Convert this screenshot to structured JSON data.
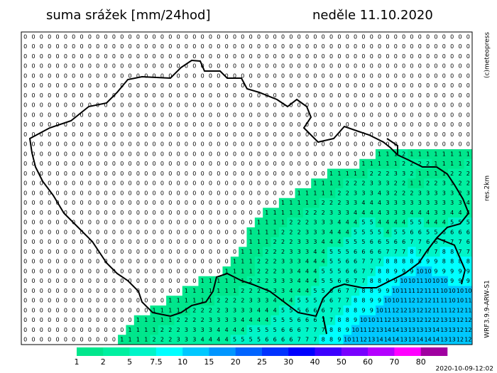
{
  "title": "suma srážek [mm/24hod]",
  "date": "neděle 11.10.2020",
  "copyright": "(c)meteopress",
  "resolution": "res.2km",
  "model": "WRF3.9.9-ARW-S1",
  "timestamp": "2020-10-09-12:02",
  "colorbar": {
    "labels": [
      "1",
      "2",
      "5",
      "7.5",
      "10",
      "15",
      "20",
      "25",
      "30",
      "40",
      "50",
      "60",
      "70",
      "80"
    ],
    "thresholds": [
      1,
      2,
      5,
      7.5,
      10,
      15,
      20,
      25,
      30,
      40,
      50,
      60,
      70,
      80
    ],
    "colors": [
      "#00e68c",
      "#00f0a0",
      "#00f5c8",
      "#00ffff",
      "#00c8ff",
      "#0096ff",
      "#0064ff",
      "#0032ff",
      "#0000ff",
      "#3c00ff",
      "#7800ff",
      "#b400ff",
      "#ff00ff",
      "#a000a0"
    ]
  },
  "grid_values": [
    [
      0,
      0,
      0,
      0,
      0,
      0,
      0,
      0,
      0,
      0,
      0,
      0,
      0,
      0,
      0,
      0,
      0,
      0,
      0,
      0,
      0,
      0,
      0,
      0,
      0,
      0,
      0,
      0,
      0,
      0,
      0,
      0,
      0,
      0,
      0,
      0,
      0,
      0,
      0,
      0,
      0,
      0,
      0,
      0,
      0,
      0,
      0,
      0,
      0,
      0,
      0,
      0,
      0,
      0,
      0,
      0
    ],
    [
      0,
      0,
      0,
      0,
      0,
      0,
      0,
      0,
      0,
      0,
      0,
      0,
      0,
      0,
      0,
      0,
      0,
      0,
      0,
      0,
      0,
      0,
      0,
      0,
      0,
      0,
      0,
      0,
      0,
      0,
      0,
      0,
      0,
      0,
      0,
      0,
      0,
      0,
      0,
      0,
      0,
      0,
      0,
      0,
      0,
      0,
      0,
      0,
      0,
      0,
      0,
      0,
      0,
      0,
      0,
      0
    ],
    [
      0,
      0,
      0,
      0,
      0,
      0,
      0,
      0,
      0,
      0,
      0,
      0,
      0,
      0,
      0,
      0,
      0,
      0,
      0,
      0,
      0,
      0,
      0,
      0,
      0,
      0,
      0,
      0,
      0,
      0,
      0,
      0,
      0,
      0,
      0,
      0,
      0,
      0,
      0,
      0,
      0,
      0,
      0,
      0,
      0,
      0,
      0,
      0,
      0,
      0,
      0,
      0,
      0,
      0,
      0,
      0
    ],
    [
      0,
      0,
      0,
      0,
      0,
      0,
      0,
      0,
      0,
      0,
      0,
      0,
      0,
      0,
      0,
      0,
      0,
      0,
      0,
      0,
      0,
      0,
      0,
      0,
      0,
      0,
      0,
      0,
      0,
      0,
      0,
      0,
      0,
      0,
      0,
      0,
      0,
      0,
      0,
      0,
      0,
      0,
      0,
      0,
      0,
      0,
      0,
      0,
      0,
      0,
      0,
      0,
      0,
      0,
      0,
      0
    ],
    [
      0,
      0,
      0,
      0,
      0,
      0,
      0,
      0,
      0,
      0,
      0,
      0,
      0,
      0,
      0,
      0,
      0,
      0,
      0,
      0,
      0,
      0,
      0,
      0,
      0,
      0,
      0,
      0,
      0,
      0,
      0,
      0,
      0,
      0,
      0,
      0,
      0,
      0,
      0,
      0,
      0,
      0,
      0,
      0,
      0,
      0,
      0,
      0,
      0,
      0,
      0,
      0,
      0,
      0,
      0,
      0
    ],
    [
      0,
      0,
      0,
      0,
      0,
      0,
      0,
      0,
      0,
      0,
      0,
      0,
      0,
      0,
      0,
      0,
      0,
      0,
      0,
      0,
      0,
      0,
      0,
      0,
      0,
      0,
      0,
      0,
      0,
      0,
      0,
      0,
      0,
      0,
      0,
      0,
      0,
      0,
      0,
      0,
      0,
      0,
      0,
      0,
      0,
      0,
      0,
      0,
      0,
      0,
      0,
      0,
      0,
      0,
      0,
      0
    ],
    [
      0,
      0,
      0,
      0,
      0,
      0,
      0,
      0,
      0,
      0,
      0,
      0,
      0,
      0,
      0,
      0,
      0,
      0,
      0,
      0,
      0,
      0,
      0,
      0,
      0,
      0,
      0,
      0,
      0,
      0,
      0,
      0,
      0,
      0,
      0,
      0,
      0,
      0,
      0,
      0,
      0,
      0,
      0,
      0,
      0,
      0,
      0,
      0,
      0,
      0,
      0,
      0,
      0,
      0,
      0,
      0
    ],
    [
      0,
      0,
      0,
      0,
      0,
      0,
      0,
      0,
      0,
      0,
      0,
      0,
      0,
      0,
      0,
      0,
      0,
      0,
      0,
      0,
      0,
      0,
      0,
      0,
      0,
      0,
      0,
      0,
      0,
      0,
      0,
      0,
      0,
      0,
      0,
      0,
      0,
      0,
      0,
      0,
      0,
      0,
      0,
      0,
      0,
      0,
      0,
      0,
      0,
      0,
      0,
      0,
      0,
      0,
      0,
      0
    ],
    [
      0,
      0,
      0,
      0,
      0,
      0,
      0,
      0,
      0,
      0,
      0,
      0,
      0,
      0,
      0,
      0,
      0,
      0,
      0,
      0,
      0,
      0,
      0,
      0,
      0,
      0,
      0,
      0,
      0,
      0,
      0,
      0,
      0,
      0,
      0,
      0,
      0,
      0,
      0,
      0,
      0,
      0,
      0,
      0,
      0,
      0,
      0,
      0,
      0,
      0,
      0,
      0,
      0,
      0,
      0,
      0
    ],
    [
      0,
      0,
      0,
      0,
      0,
      0,
      0,
      0,
      0,
      0,
      0,
      0,
      0,
      0,
      0,
      0,
      0,
      0,
      0,
      0,
      0,
      0,
      0,
      0,
      0,
      0,
      0,
      0,
      0,
      0,
      0,
      0,
      0,
      0,
      0,
      0,
      0,
      0,
      0,
      0,
      0,
      0,
      0,
      0,
      0,
      0,
      0,
      0,
      0,
      0,
      0,
      0,
      0,
      0,
      0,
      0
    ],
    [
      0,
      0,
      0,
      0,
      0,
      0,
      0,
      0,
      0,
      0,
      0,
      0,
      0,
      0,
      0,
      0,
      0,
      0,
      0,
      0,
      0,
      0,
      0,
      0,
      0,
      0,
      0,
      0,
      0,
      0,
      0,
      0,
      0,
      0,
      0,
      0,
      0,
      0,
      0,
      0,
      0,
      0,
      0,
      0,
      0,
      0,
      0,
      0,
      0,
      0,
      0,
      0,
      0,
      0,
      0,
      0
    ],
    [
      0,
      0,
      0,
      0,
      0,
      0,
      0,
      0,
      0,
      0,
      0,
      0,
      0,
      0,
      0,
      0,
      0,
      0,
      0,
      0,
      0,
      0,
      0,
      0,
      0,
      0,
      0,
      0,
      0,
      0,
      0,
      0,
      0,
      0,
      0,
      0,
      0,
      0,
      0,
      0,
      0,
      0,
      0,
      0,
      0,
      0,
      0,
      0,
      0,
      0,
      0,
      0,
      0,
      0,
      0,
      0
    ],
    [
      0,
      0,
      0,
      0,
      0,
      0,
      0,
      0,
      0,
      0,
      0,
      0,
      0,
      0,
      0,
      0,
      0,
      0,
      0,
      0,
      0,
      0,
      0,
      0,
      0,
      0,
      0,
      0,
      0,
      0,
      0,
      0,
      0,
      0,
      0,
      0,
      0,
      0,
      0,
      0,
      0,
      0,
      0,
      0,
      1,
      1,
      1,
      2,
      1,
      1,
      1,
      1,
      1,
      1,
      1,
      1
    ],
    [
      0,
      0,
      0,
      0,
      0,
      0,
      0,
      0,
      0,
      0,
      0,
      0,
      0,
      0,
      0,
      0,
      0,
      0,
      0,
      0,
      0,
      0,
      0,
      0,
      0,
      0,
      0,
      0,
      0,
      0,
      0,
      0,
      0,
      0,
      0,
      0,
      0,
      0,
      0,
      0,
      0,
      0,
      1,
      1,
      1,
      1,
      1,
      2,
      2,
      2,
      2,
      1,
      1,
      1,
      1,
      2
    ],
    [
      0,
      0,
      0,
      0,
      0,
      0,
      0,
      0,
      0,
      0,
      0,
      0,
      0,
      0,
      0,
      0,
      0,
      0,
      0,
      0,
      0,
      0,
      0,
      0,
      0,
      0,
      0,
      0,
      0,
      0,
      0,
      0,
      0,
      0,
      0,
      0,
      0,
      0,
      1,
      1,
      1,
      1,
      1,
      2,
      2,
      2,
      3,
      3,
      2,
      1,
      1,
      1,
      1,
      2,
      2,
      2
    ],
    [
      0,
      0,
      0,
      0,
      0,
      0,
      0,
      0,
      0,
      0,
      0,
      0,
      0,
      0,
      0,
      0,
      0,
      0,
      0,
      0,
      0,
      0,
      0,
      0,
      0,
      0,
      0,
      0,
      0,
      0,
      0,
      0,
      0,
      0,
      0,
      0,
      1,
      1,
      1,
      1,
      2,
      2,
      2,
      3,
      3,
      3,
      2,
      2,
      1,
      1,
      2,
      2,
      3,
      3,
      2,
      2
    ],
    [
      0,
      0,
      0,
      0,
      0,
      0,
      0,
      0,
      0,
      0,
      0,
      0,
      0,
      0,
      0,
      0,
      0,
      0,
      0,
      0,
      0,
      0,
      0,
      0,
      0,
      0,
      0,
      0,
      0,
      0,
      0,
      0,
      0,
      0,
      1,
      1,
      1,
      1,
      1,
      2,
      2,
      3,
      3,
      3,
      4,
      3,
      2,
      2,
      2,
      3,
      3,
      3,
      3,
      3,
      2,
      3
    ],
    [
      0,
      0,
      0,
      0,
      0,
      0,
      0,
      0,
      0,
      0,
      0,
      0,
      0,
      0,
      0,
      0,
      0,
      0,
      0,
      0,
      0,
      0,
      0,
      0,
      0,
      0,
      0,
      0,
      0,
      0,
      0,
      0,
      1,
      1,
      1,
      1,
      1,
      2,
      2,
      2,
      3,
      3,
      4,
      4,
      4,
      3,
      3,
      3,
      3,
      3,
      3,
      3,
      3,
      3,
      3,
      4
    ],
    [
      0,
      0,
      0,
      0,
      0,
      0,
      0,
      0,
      0,
      0,
      0,
      0,
      0,
      0,
      0,
      0,
      0,
      0,
      0,
      0,
      0,
      0,
      0,
      0,
      0,
      0,
      0,
      0,
      0,
      0,
      1,
      1,
      1,
      1,
      1,
      2,
      2,
      2,
      3,
      3,
      3,
      4,
      4,
      4,
      4,
      3,
      3,
      3,
      4,
      4,
      4,
      3,
      3,
      4,
      4,
      4
    ],
    [
      0,
      0,
      0,
      0,
      0,
      0,
      0,
      0,
      0,
      0,
      0,
      0,
      0,
      0,
      0,
      0,
      0,
      0,
      0,
      0,
      0,
      0,
      0,
      0,
      0,
      0,
      0,
      0,
      0,
      1,
      1,
      1,
      1,
      2,
      2,
      2,
      3,
      3,
      3,
      4,
      4,
      4,
      5,
      5,
      4,
      4,
      4,
      4,
      5,
      5,
      4,
      4,
      4,
      5,
      5,
      5
    ],
    [
      0,
      0,
      0,
      0,
      0,
      0,
      0,
      0,
      0,
      0,
      0,
      0,
      0,
      0,
      0,
      0,
      0,
      0,
      0,
      0,
      0,
      0,
      0,
      0,
      0,
      0,
      0,
      0,
      1,
      1,
      1,
      1,
      2,
      2,
      2,
      3,
      3,
      3,
      4,
      4,
      4,
      5,
      5,
      5,
      5,
      4,
      5,
      5,
      6,
      6,
      5,
      5,
      6,
      6,
      6,
      6
    ],
    [
      0,
      0,
      0,
      0,
      0,
      0,
      0,
      0,
      0,
      0,
      0,
      0,
      0,
      0,
      0,
      0,
      0,
      0,
      0,
      0,
      0,
      0,
      0,
      0,
      0,
      0,
      0,
      0,
      1,
      1,
      1,
      2,
      2,
      2,
      3,
      3,
      3,
      4,
      4,
      4,
      5,
      5,
      5,
      6,
      6,
      5,
      6,
      6,
      7,
      7,
      6,
      6,
      7,
      7,
      7,
      6
    ],
    [
      0,
      0,
      0,
      0,
      0,
      0,
      0,
      0,
      0,
      0,
      0,
      0,
      0,
      0,
      0,
      0,
      0,
      0,
      0,
      0,
      0,
      0,
      0,
      0,
      0,
      0,
      0,
      1,
      1,
      1,
      2,
      2,
      2,
      3,
      3,
      3,
      4,
      4,
      5,
      5,
      5,
      6,
      6,
      6,
      6,
      7,
      7,
      7,
      8,
      7,
      7,
      7,
      8,
      8,
      7,
      7
    ],
    [
      0,
      0,
      0,
      0,
      0,
      0,
      0,
      0,
      0,
      0,
      0,
      0,
      0,
      0,
      0,
      0,
      0,
      0,
      0,
      0,
      0,
      0,
      0,
      0,
      0,
      0,
      1,
      1,
      1,
      2,
      2,
      2,
      3,
      3,
      3,
      4,
      4,
      4,
      5,
      5,
      6,
      6,
      7,
      7,
      7,
      8,
      8,
      8,
      8,
      8,
      9,
      9,
      8,
      8,
      8,
      8
    ],
    [
      0,
      0,
      0,
      0,
      0,
      0,
      0,
      0,
      0,
      0,
      0,
      0,
      0,
      0,
      0,
      0,
      0,
      0,
      0,
      0,
      0,
      0,
      0,
      0,
      0,
      1,
      1,
      1,
      1,
      2,
      2,
      2,
      3,
      3,
      4,
      4,
      4,
      5,
      5,
      5,
      6,
      6,
      7,
      7,
      8,
      8,
      9,
      9,
      9,
      10,
      10,
      9,
      9,
      9,
      9,
      9
    ],
    [
      0,
      0,
      0,
      0,
      0,
      0,
      0,
      0,
      0,
      0,
      0,
      0,
      0,
      0,
      0,
      0,
      0,
      0,
      0,
      0,
      0,
      0,
      1,
      1,
      1,
      1,
      1,
      1,
      2,
      2,
      2,
      3,
      3,
      3,
      4,
      4,
      4,
      5,
      5,
      6,
      6,
      7,
      7,
      8,
      8,
      9,
      9,
      10,
      10,
      11,
      10,
      10,
      10,
      9,
      9,
      9
    ],
    [
      0,
      0,
      0,
      0,
      0,
      0,
      0,
      0,
      0,
      0,
      0,
      0,
      0,
      0,
      0,
      0,
      0,
      0,
      0,
      0,
      1,
      1,
      1,
      1,
      1,
      1,
      1,
      2,
      2,
      2,
      3,
      3,
      3,
      4,
      4,
      4,
      5,
      5,
      6,
      6,
      7,
      7,
      8,
      8,
      9,
      9,
      10,
      11,
      11,
      12,
      11,
      11,
      10,
      10,
      10,
      10
    ],
    [
      0,
      0,
      0,
      0,
      0,
      0,
      0,
      0,
      0,
      0,
      0,
      0,
      0,
      0,
      0,
      0,
      0,
      0,
      1,
      1,
      1,
      1,
      1,
      1,
      2,
      2,
      2,
      2,
      3,
      3,
      3,
      4,
      4,
      4,
      5,
      5,
      5,
      6,
      6,
      7,
      7,
      8,
      8,
      9,
      9,
      10,
      10,
      11,
      12,
      12,
      12,
      11,
      11,
      10,
      10,
      11
    ],
    [
      0,
      0,
      0,
      0,
      0,
      0,
      0,
      0,
      0,
      0,
      0,
      0,
      0,
      0,
      0,
      0,
      1,
      1,
      1,
      1,
      1,
      2,
      2,
      2,
      2,
      3,
      3,
      3,
      3,
      4,
      4,
      4,
      5,
      5,
      5,
      6,
      6,
      6,
      7,
      7,
      8,
      8,
      9,
      9,
      10,
      11,
      12,
      12,
      13,
      12,
      12,
      11,
      11,
      12,
      12,
      11
    ],
    [
      0,
      0,
      0,
      0,
      0,
      0,
      0,
      0,
      0,
      0,
      0,
      0,
      0,
      0,
      1,
      1,
      1,
      1,
      1,
      2,
      2,
      2,
      2,
      3,
      3,
      3,
      3,
      4,
      4,
      4,
      4,
      5,
      5,
      5,
      6,
      6,
      6,
      7,
      7,
      8,
      8,
      9,
      10,
      10,
      11,
      12,
      13,
      13,
      13,
      12,
      12,
      12,
      13,
      13,
      12,
      12
    ],
    [
      0,
      0,
      0,
      0,
      0,
      0,
      0,
      0,
      0,
      0,
      0,
      0,
      0,
      1,
      1,
      1,
      1,
      2,
      2,
      2,
      3,
      3,
      3,
      3,
      4,
      4,
      4,
      4,
      5,
      5,
      5,
      5,
      6,
      6,
      6,
      7,
      7,
      7,
      8,
      8,
      9,
      10,
      11,
      12,
      13,
      14,
      14,
      13,
      13,
      13,
      13,
      14,
      13,
      13,
      12,
      12
    ],
    [
      0,
      0,
      0,
      0,
      0,
      0,
      0,
      0,
      0,
      0,
      0,
      0,
      1,
      1,
      1,
      1,
      2,
      2,
      2,
      3,
      3,
      3,
      4,
      4,
      4,
      4,
      5,
      5,
      5,
      5,
      6,
      6,
      6,
      6,
      7,
      7,
      7,
      8,
      8,
      9,
      10,
      11,
      12,
      13,
      14,
      14,
      14,
      13,
      13,
      14,
      14,
      14,
      13,
      13,
      12,
      12
    ]
  ]
}
